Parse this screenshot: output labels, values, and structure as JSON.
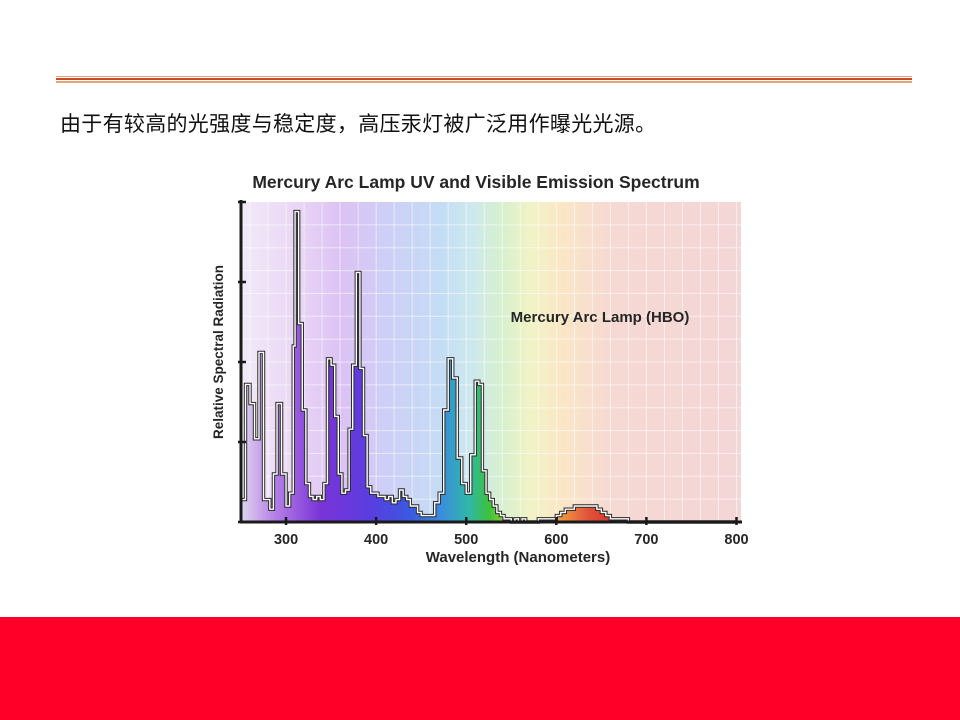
{
  "slide": {
    "caption": "由于有较高的光强度与稳定度，高压汞灯被广泛用作曝光光源。",
    "accent_color": "#ff0028",
    "rule_color": "#c94a28"
  },
  "chart_data": {
    "type": "line",
    "title": "Mercury Arc Lamp UV and Visible Emission Spectrum",
    "xlabel": "Wavelength (Nanometers)",
    "ylabel": "Relative Spectral Radiation",
    "annotation": "Mercury Arc Lamp (HBO)",
    "xlim": [
      250,
      805
    ],
    "ylim": [
      0,
      1
    ],
    "x_ticks": [
      300,
      400,
      500,
      600,
      700,
      800
    ],
    "grid": true,
    "series": [
      {
        "x": [
          250,
          255,
          260,
          265,
          270,
          275,
          282,
          286,
          290,
          295,
          300,
          304,
          308,
          310,
          314,
          318,
          322,
          326,
          330,
          334,
          338,
          342,
          346,
          350,
          354,
          358,
          362,
          366,
          370,
          374,
          378,
          382,
          386,
          390,
          394,
          398,
          402,
          406,
          410,
          414,
          418,
          422,
          426,
          430,
          434,
          438,
          442,
          446,
          450,
          455,
          460,
          465,
          470,
          475,
          480,
          485,
          490,
          495,
          500,
          505,
          510,
          514,
          518,
          522,
          526,
          530,
          534,
          538,
          542,
          546,
          550,
          554,
          558,
          562,
          566,
          570,
          575,
          580,
          585,
          590,
          595,
          600,
          605,
          610,
          620,
          630,
          640,
          645,
          650,
          655,
          660,
          665,
          670,
          675,
          680,
          685,
          690,
          695,
          700,
          710,
          720,
          730,
          740,
          750,
          760,
          770,
          780,
          790,
          800
        ],
        "y": [
          0.07,
          0.43,
          0.37,
          0.26,
          0.53,
          0.07,
          0.04,
          0.15,
          0.37,
          0.15,
          0.05,
          0.09,
          0.55,
          0.97,
          0.62,
          0.35,
          0.12,
          0.08,
          0.07,
          0.08,
          0.07,
          0.12,
          0.51,
          0.49,
          0.33,
          0.15,
          0.09,
          0.1,
          0.29,
          0.49,
          0.78,
          0.48,
          0.27,
          0.11,
          0.09,
          0.09,
          0.08,
          0.08,
          0.07,
          0.08,
          0.06,
          0.07,
          0.1,
          0.08,
          0.07,
          0.05,
          0.05,
          0.03,
          0.02,
          0.02,
          0.02,
          0.06,
          0.09,
          0.35,
          0.51,
          0.45,
          0.2,
          0.12,
          0.09,
          0.21,
          0.44,
          0.43,
          0.16,
          0.09,
          0.07,
          0.05,
          0.03,
          0.02,
          0.01,
          0.01,
          0.0,
          0.01,
          0.0,
          0.01,
          0.0,
          0.0,
          0.0,
          0.01,
          0.01,
          0.01,
          0.01,
          0.02,
          0.03,
          0.04,
          0.05,
          0.05,
          0.05,
          0.04,
          0.03,
          0.02,
          0.01,
          0.01,
          0.01,
          0.01,
          0.0,
          0.0,
          0.0,
          0.0,
          0.0,
          0.0,
          0.0,
          0.0,
          0.0,
          0.0,
          0.0,
          0.0,
          0.0,
          0.0,
          0.0
        ]
      }
    ]
  }
}
